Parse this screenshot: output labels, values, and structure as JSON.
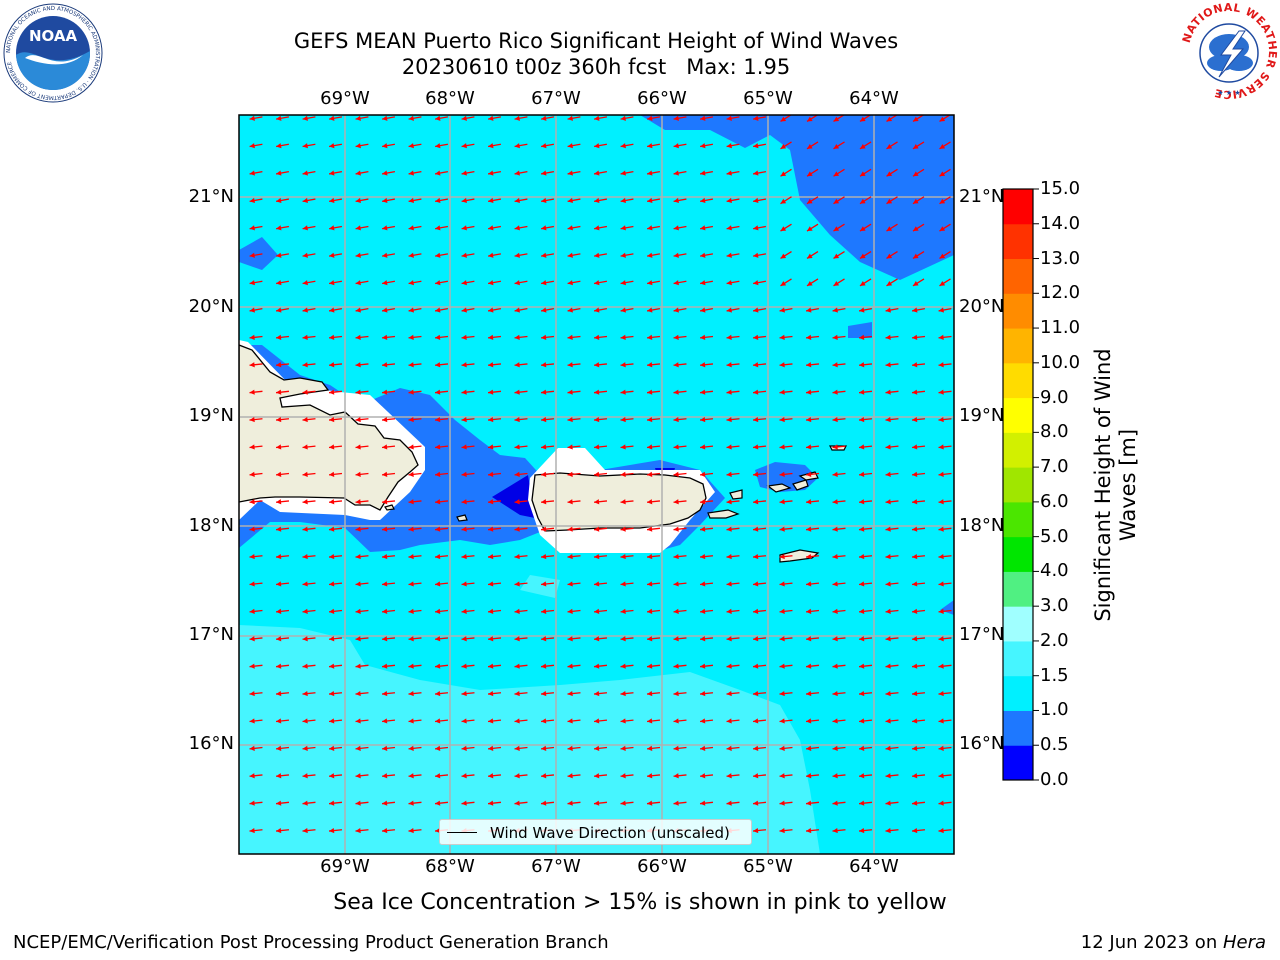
{
  "header": {
    "title": "GEFS MEAN Puerto Rico Significant Height of Wind Waves",
    "subtitle_run": "20230610 t00z 360h fcst",
    "subtitle_max": "Max: 1.95"
  },
  "logos": {
    "left": {
      "text": "NOAA",
      "ring_text": "NATIONAL OCEANIC AND ATMOSPHERIC ADMINISTRATION · U.S. DEPARTMENT OF COMMERCE"
    },
    "right": {
      "ring_text": "NATIONAL WEATHER SERVICE"
    }
  },
  "map": {
    "lon_labels": [
      "69°W",
      "68°W",
      "67°W",
      "66°W",
      "65°W",
      "64°W"
    ],
    "lat_labels": [
      "21°N",
      "20°N",
      "19°N",
      "18°N",
      "17°N",
      "16°N"
    ],
    "arrow_color": "#ff0000",
    "land_color": "#efeedc",
    "gridline_color": "#b0b0b0"
  },
  "colorbar": {
    "title_line1": "Significant Height of Wind",
    "title_line2": "Waves [m]",
    "ticks": [
      "0.0",
      "0.5",
      "1.0",
      "1.5",
      "2.0",
      "3.0",
      "4.0",
      "5.0",
      "6.0",
      "7.0",
      "8.0",
      "9.0",
      "10.0",
      "11.0",
      "12.0",
      "13.0",
      "14.0",
      "15.0"
    ],
    "colors": [
      "#0000ff",
      "#1e78ff",
      "#00f0ff",
      "#46f5ff",
      "#a0ffff",
      "#50f082",
      "#00e600",
      "#4be600",
      "#a0e600",
      "#d2f000",
      "#ffff00",
      "#ffdc00",
      "#ffb400",
      "#ff8c00",
      "#ff6400",
      "#ff3200",
      "#ff0000"
    ]
  },
  "legend": {
    "label": "Wind Wave Direction (unscaled)"
  },
  "footer": {
    "note": "Sea Ice Concentration > 15% is shown in pink to yellow",
    "left": "NCEP/EMC/Verification Post Processing Product Generation Branch",
    "right_prefix": "12 Jun 2023 on ",
    "right_host": "Hera"
  }
}
